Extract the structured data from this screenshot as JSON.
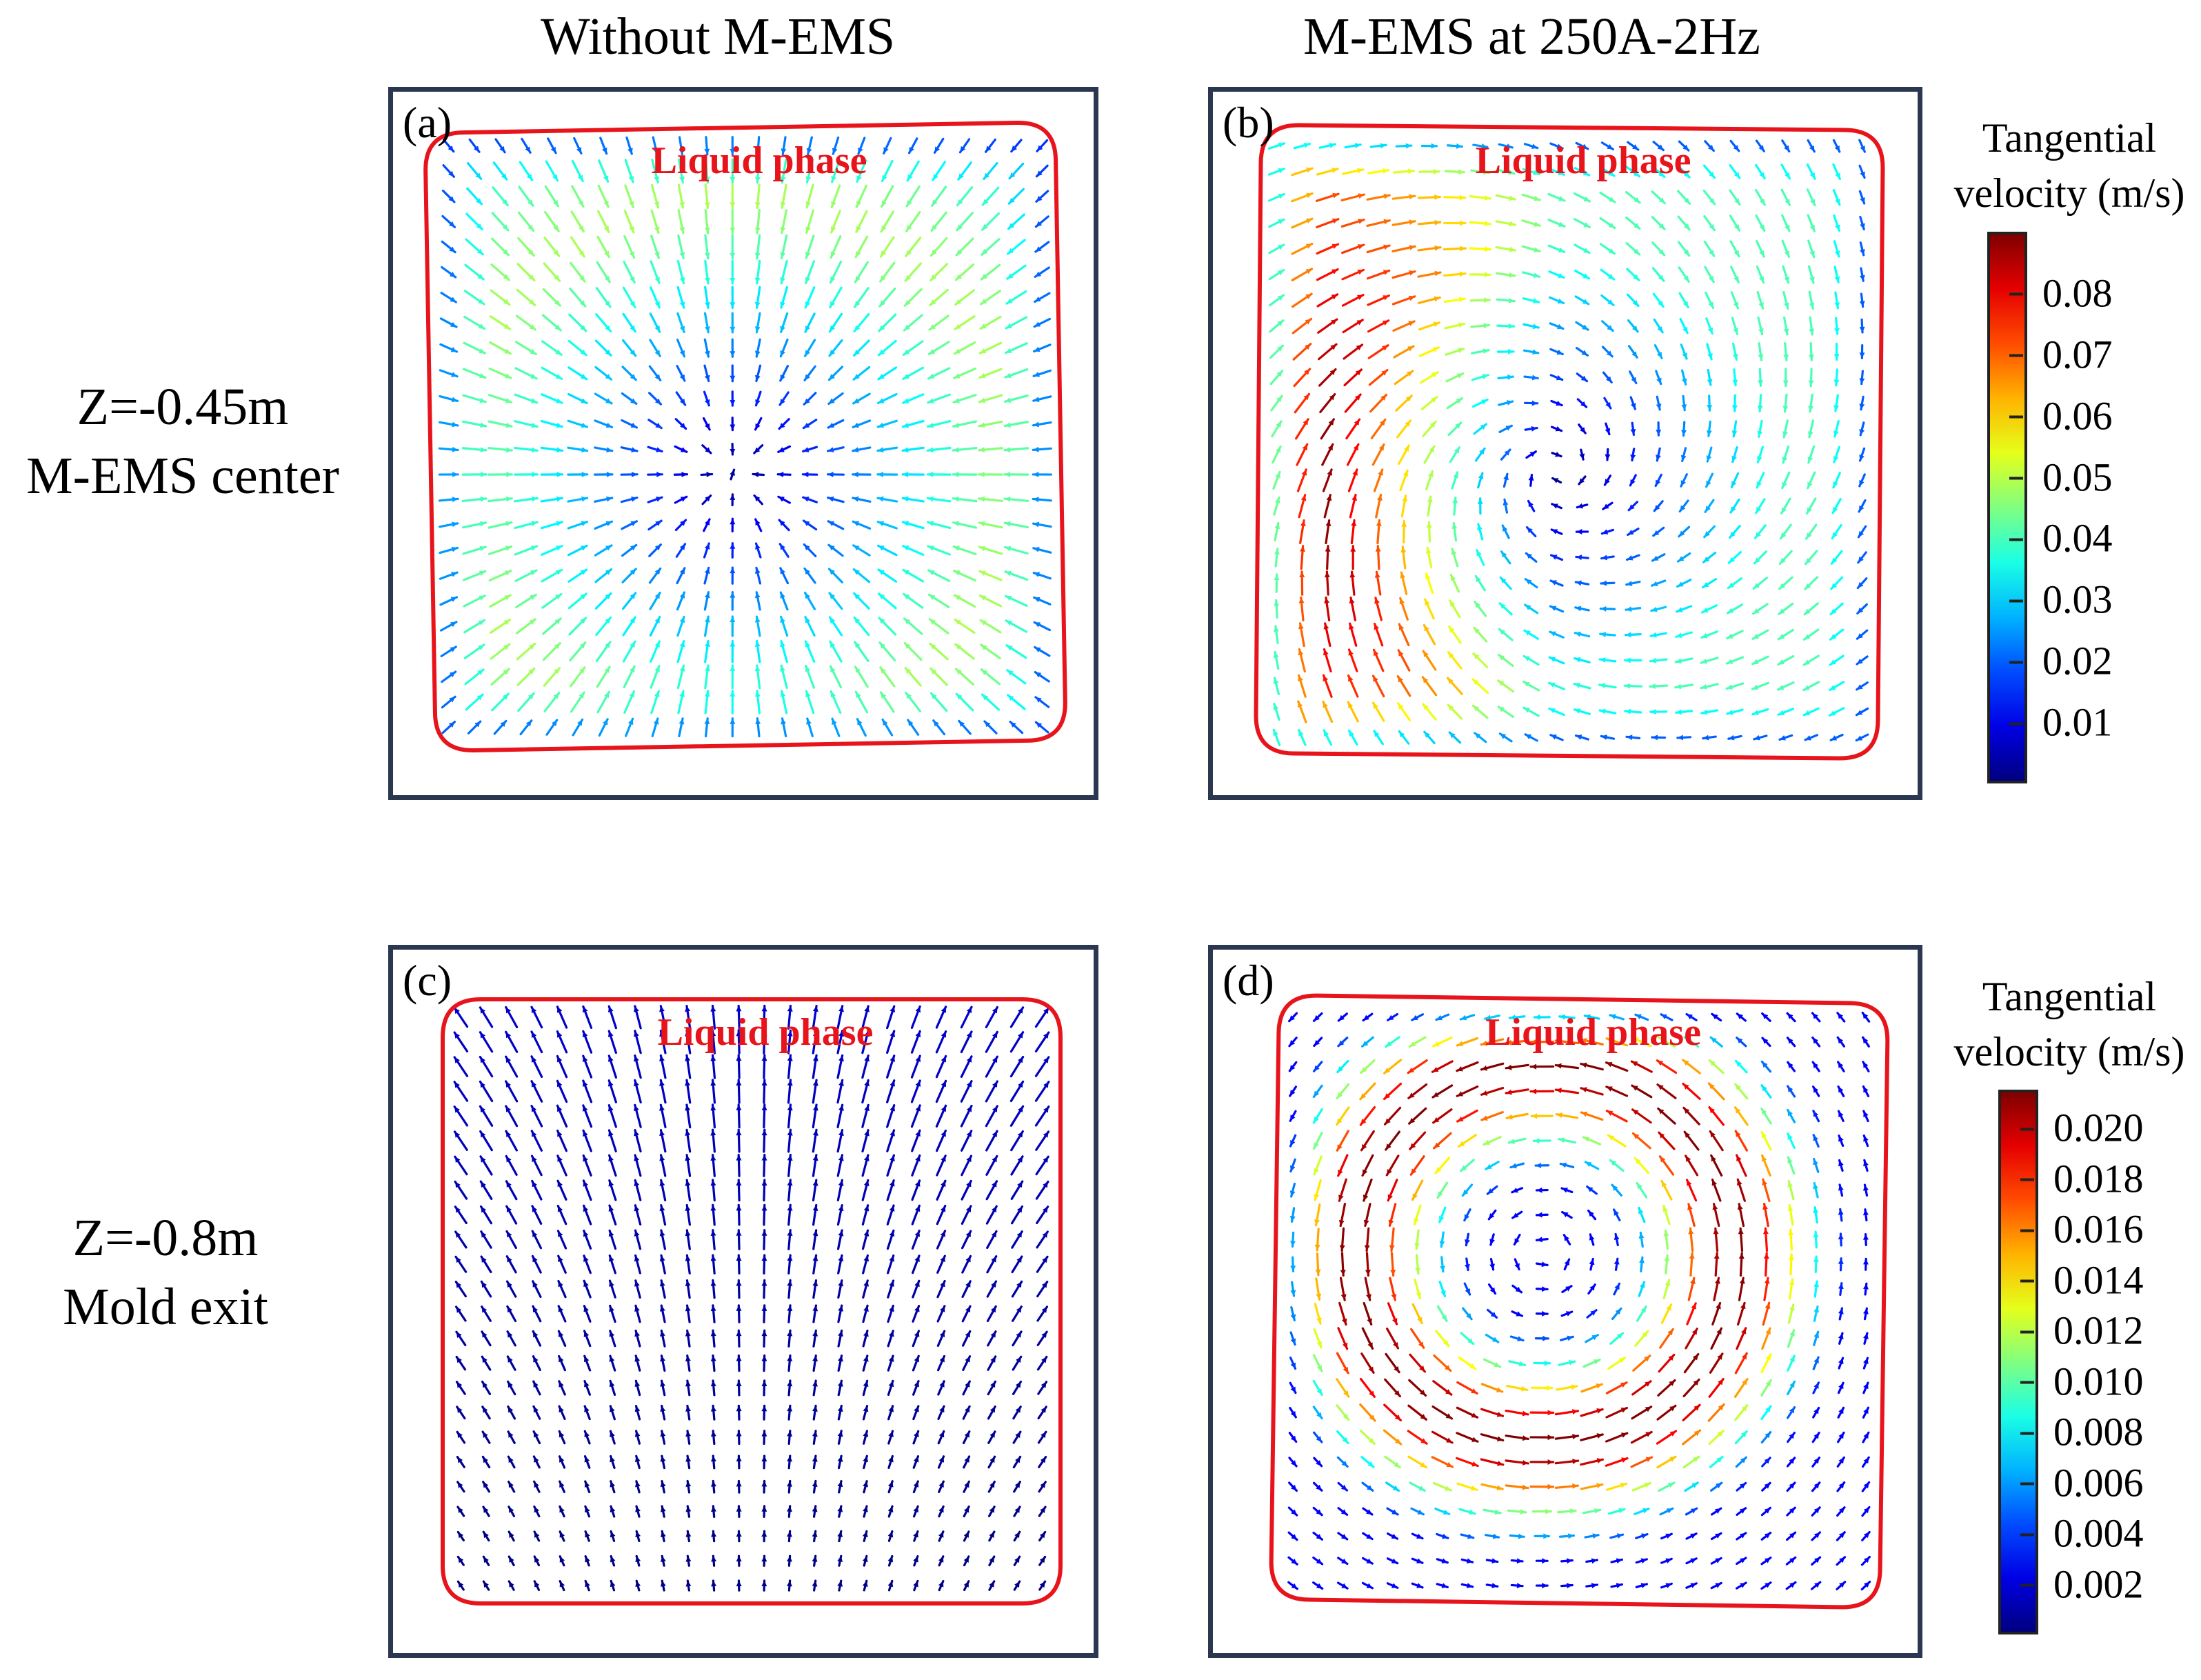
{
  "column_headers": [
    "Without M-EMS",
    "M-EMS at 250A-2Hz"
  ],
  "rows": [
    {
      "line1": "Z=-0.45m",
      "line2": "M-EMS center"
    },
    {
      "line1": "Z=-0.8m",
      "line2": "Mold exit"
    }
  ],
  "panels": [
    {
      "tag": "(a)",
      "region_label": "Liquid phase",
      "pattern": "radial-converging",
      "vmax_color_level": 0.55
    },
    {
      "tag": "(b)",
      "region_label": "Liquid phase",
      "pattern": "swirl",
      "vmax_color_level": 1.0
    },
    {
      "tag": "(c)",
      "region_label": "Liquid phase",
      "pattern": "upward-low",
      "vmax_color_level": 0.08
    },
    {
      "tag": "(d)",
      "region_label": "Liquid phase",
      "pattern": "vortex-ring",
      "vmax_color_level": 1.0
    }
  ],
  "colorbars": [
    {
      "title_line1": "Tangential",
      "title_line2": "velocity (m/s)",
      "ticks": [
        "0.08",
        "0.07",
        "0.06",
        "0.05",
        "0.04",
        "0.03",
        "0.02",
        "0.01"
      ],
      "range": [
        0,
        0.09
      ]
    },
    {
      "title_line1": "Tangential",
      "title_line2": "velocity (m/s)",
      "ticks": [
        "0.020",
        "0.018",
        "0.016",
        "0.014",
        "0.012",
        "0.010",
        "0.008",
        "0.006",
        "0.004",
        "0.002"
      ],
      "range": [
        0,
        0.0215
      ]
    }
  ],
  "colors": {
    "boundary": "#e8141c",
    "label": "#e8141c",
    "frame": "#2b3650"
  }
}
